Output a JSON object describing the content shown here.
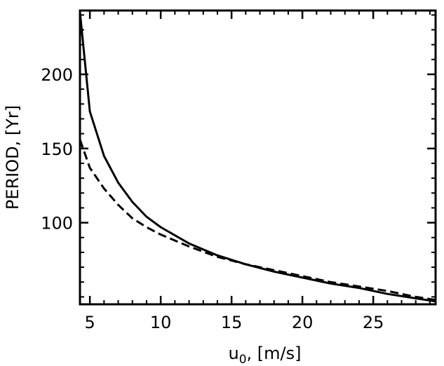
{
  "chart_data": {
    "type": "line",
    "title": "",
    "xlabel_main": "u",
    "xlabel_sub": "0",
    "xlabel_rest": ", [m/s]",
    "ylabel": "PERIOD, [Yr]",
    "xlim": [
      4.3,
      29.4
    ],
    "ylim": [
      45,
      243
    ],
    "xticks_major": [
      5,
      10,
      15,
      20,
      25
    ],
    "xtick_labels": [
      "5",
      "10",
      "15",
      "20",
      "25"
    ],
    "xticks_minor": [
      6,
      7,
      8,
      9,
      11,
      12,
      13,
      14,
      16,
      17,
      18,
      19,
      21,
      22,
      23,
      24,
      26,
      27,
      28,
      29
    ],
    "yticks_major": [
      100,
      150,
      200
    ],
    "ytick_labels": [
      "100",
      "150",
      "200"
    ],
    "yticks_minor": [
      50,
      60,
      70,
      80,
      90,
      110,
      120,
      130,
      140,
      160,
      170,
      180,
      190,
      210,
      220,
      230,
      240
    ],
    "grid": false,
    "series": [
      {
        "style": "solid",
        "x": [
          4.3,
          5,
          6,
          7,
          8,
          9,
          10,
          12,
          14,
          16,
          18,
          20,
          22,
          24,
          26,
          28,
          29.4
        ],
        "y": [
          242,
          175,
          145,
          127,
          114,
          104,
          97,
          86,
          78,
          72,
          67,
          63,
          59,
          56,
          52,
          49,
          47
        ]
      },
      {
        "style": "dashed",
        "x": [
          4.3,
          5,
          6,
          7,
          8,
          9,
          10,
          12,
          14,
          16,
          18,
          20,
          22,
          24,
          26,
          28,
          29.4
        ],
        "y": [
          156,
          137,
          123,
          112,
          103,
          97,
          92,
          84,
          77,
          72,
          68,
          64,
          60,
          57,
          54,
          50,
          48
        ]
      }
    ]
  }
}
